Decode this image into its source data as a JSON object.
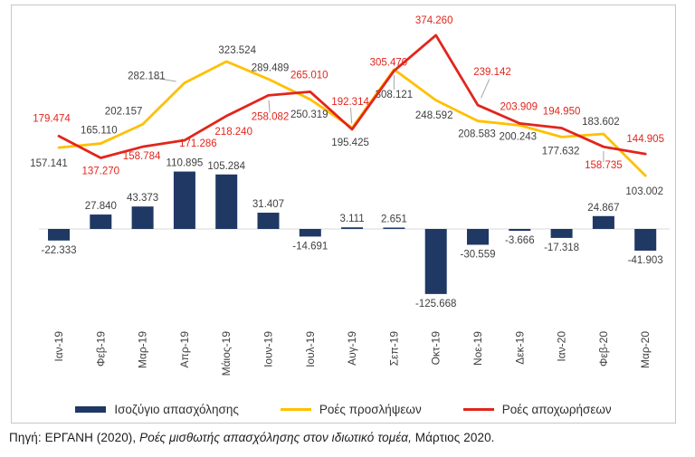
{
  "chart_data": {
    "type": "combo",
    "categories": [
      "Ιαν-19",
      "Φεβ-19",
      "Μαρ-19",
      "Απρ-19",
      "Μάιος-19",
      "Ιουν-19",
      "Ιουλ-19",
      "Αυγ-19",
      "Σεπ-19",
      "Οκτ-19",
      "Νοε-19",
      "Δεκ-19",
      "Ιαν-20",
      "Φεβ-20",
      "Μαρ-20"
    ],
    "series": [
      {
        "name": "Ισοζύγιο απασχόλησης",
        "kind": "bar",
        "color": "#1f3864",
        "label_color": "#404040",
        "values": [
          -22333,
          27840,
          43373,
          110895,
          105284,
          31407,
          -14691,
          3111,
          2651,
          -125668,
          -30559,
          -3666,
          -17318,
          24867,
          -41903
        ]
      },
      {
        "name": "Ροές προσλήψεων",
        "kind": "line",
        "color": "#ffc000",
        "label_color": "#404040",
        "values": [
          157141,
          165110,
          202157,
          282181,
          323524,
          289489,
          250319,
          195425,
          308121,
          248592,
          208583,
          200243,
          177632,
          183602,
          103002
        ]
      },
      {
        "name": "Ροές αποχωρήσεων",
        "kind": "line",
        "color": "#e2251c",
        "label_color": "#e2251c",
        "values": [
          179474,
          137270,
          158784,
          171286,
          218240,
          258082,
          265010,
          192314,
          305470,
          374260,
          239142,
          203909,
          194950,
          158735,
          144905
        ]
      }
    ],
    "value_label_format": "thousands-dot",
    "ylim": [
      -150000,
      400000
    ],
    "grid": false,
    "legend_position": "bottom",
    "axis_line_color": "#d9d9d9",
    "category_label_color": "#404040",
    "leader_line_color": "#a6a6a6"
  },
  "caption": {
    "prefix": "Πηγή: ΕΡΓΑΝΗ (2020), ",
    "italic_part": "Ροές μισθωτής απασχόλησης στον ιδιωτικό τομέα,",
    "suffix": " Μάρτιος 2020."
  }
}
